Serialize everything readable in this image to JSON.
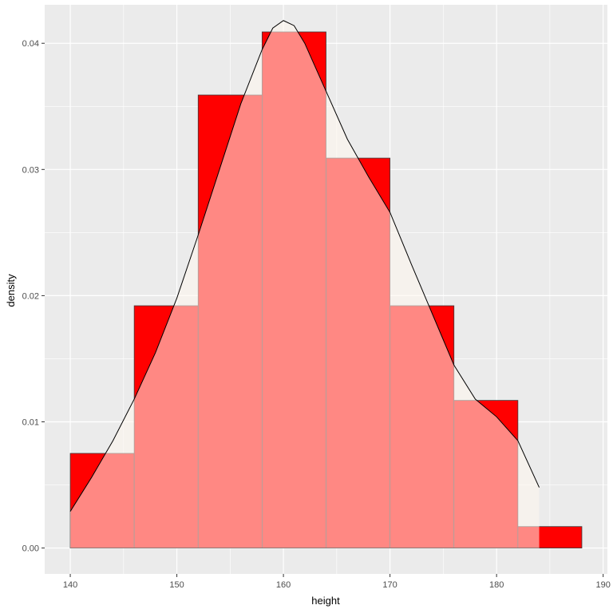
{
  "chart_data": {
    "type": "histogram",
    "title": "",
    "xlabel": "height",
    "ylabel": "density",
    "xlim": [
      137.6,
      190.4
    ],
    "ylim": [
      -0.00205,
      0.04305
    ],
    "x_ticks": [
      140,
      150,
      160,
      170,
      180,
      190
    ],
    "y_ticks": [
      0.0,
      0.01,
      0.02,
      0.03,
      0.04
    ],
    "x_tick_labels": [
      "140",
      "150",
      "160",
      "170",
      "180",
      "190"
    ],
    "y_tick_labels": [
      "0.00",
      "0.01",
      "0.02",
      "0.03",
      "0.04"
    ],
    "bins": [
      {
        "x0": 140,
        "x1": 146,
        "density": 0.0075
      },
      {
        "x0": 146,
        "x1": 152,
        "density": 0.0192
      },
      {
        "x0": 152,
        "x1": 158,
        "density": 0.0359
      },
      {
        "x0": 158,
        "x1": 164,
        "density": 0.0409
      },
      {
        "x0": 164,
        "x1": 170,
        "density": 0.0309
      },
      {
        "x0": 170,
        "x1": 176,
        "density": 0.0192
      },
      {
        "x0": 176,
        "x1": 182,
        "density": 0.0117
      },
      {
        "x0": 182,
        "x1": 188,
        "density": 0.0017
      }
    ],
    "density_curve": {
      "x": [
        140,
        142,
        144,
        146,
        148,
        150,
        152,
        154,
        156,
        158,
        159,
        160,
        161,
        162,
        164,
        166,
        168,
        170,
        172,
        174,
        176,
        178,
        180,
        182,
        184
      ],
      "y": [
        0.0029,
        0.0056,
        0.0085,
        0.0118,
        0.0155,
        0.0198,
        0.0248,
        0.03,
        0.0352,
        0.0395,
        0.0412,
        0.0418,
        0.0414,
        0.04,
        0.0362,
        0.0324,
        0.0294,
        0.0266,
        0.0225,
        0.0185,
        0.0145,
        0.0118,
        0.0104,
        0.0085,
        0.0048
      ]
    },
    "colors": {
      "panel": "#ebebeb",
      "grid": "#ffffff",
      "bar_fill": "#ff0000",
      "bar_outline": "#3c3c3c",
      "density_fill": "#fff8ee",
      "density_fill_alpha": 0.55,
      "density_line": "#000000"
    },
    "grid": true,
    "legend": "none"
  }
}
